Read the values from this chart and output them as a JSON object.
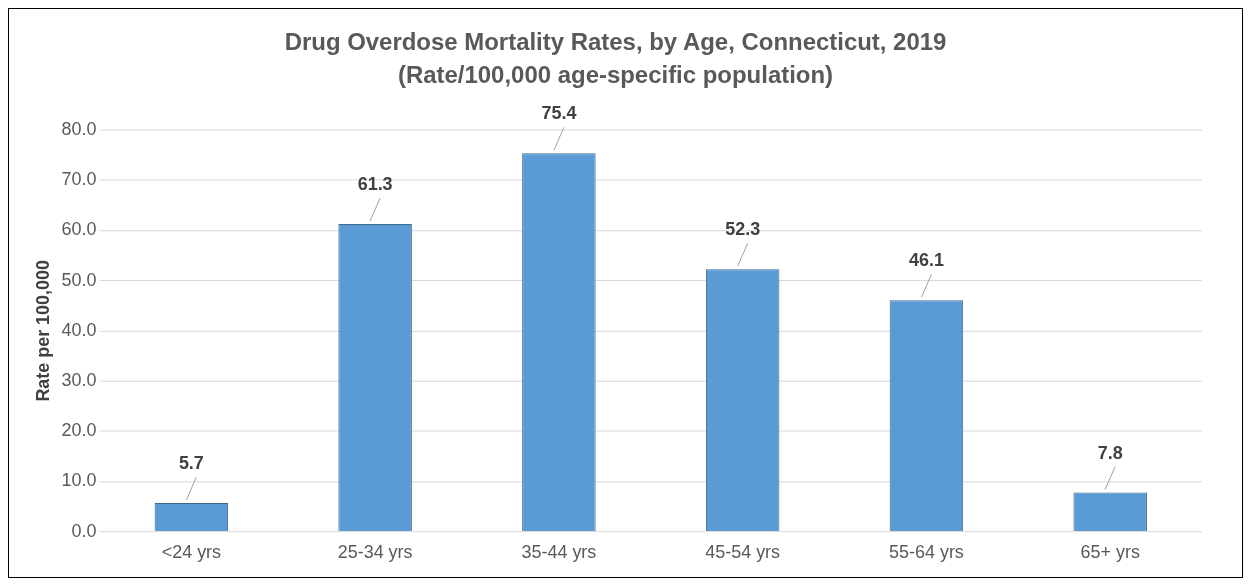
{
  "chart_data": {
    "type": "bar",
    "title": "Drug Overdose Mortality Rates, by Age, Connecticut, 2019",
    "subtitle": "(Rate/100,000 age-specific population)",
    "ylabel": "Rate per 100,000",
    "categories": [
      "<24 yrs",
      "25-34 yrs",
      "35-44 yrs",
      "45-54 yrs",
      "55-64 yrs",
      "65+ yrs"
    ],
    "values": [
      5.7,
      61.3,
      75.4,
      52.3,
      46.1,
      7.8
    ],
    "color": "#5b9bd5",
    "ylim": [
      0,
      80
    ],
    "yticks": [
      {
        "value": 0,
        "label": "0.0"
      },
      {
        "value": 10,
        "label": "10.0"
      },
      {
        "value": 20,
        "label": "20.0"
      },
      {
        "value": 30,
        "label": "30.0"
      },
      {
        "value": 40,
        "label": "40.0"
      },
      {
        "value": 50,
        "label": "50.0"
      },
      {
        "value": 60,
        "label": "60.0"
      },
      {
        "value": 70,
        "label": "70.0"
      },
      {
        "value": 80,
        "label": "80.0"
      }
    ],
    "grid": "y",
    "data_labels": true,
    "legend": false
  }
}
